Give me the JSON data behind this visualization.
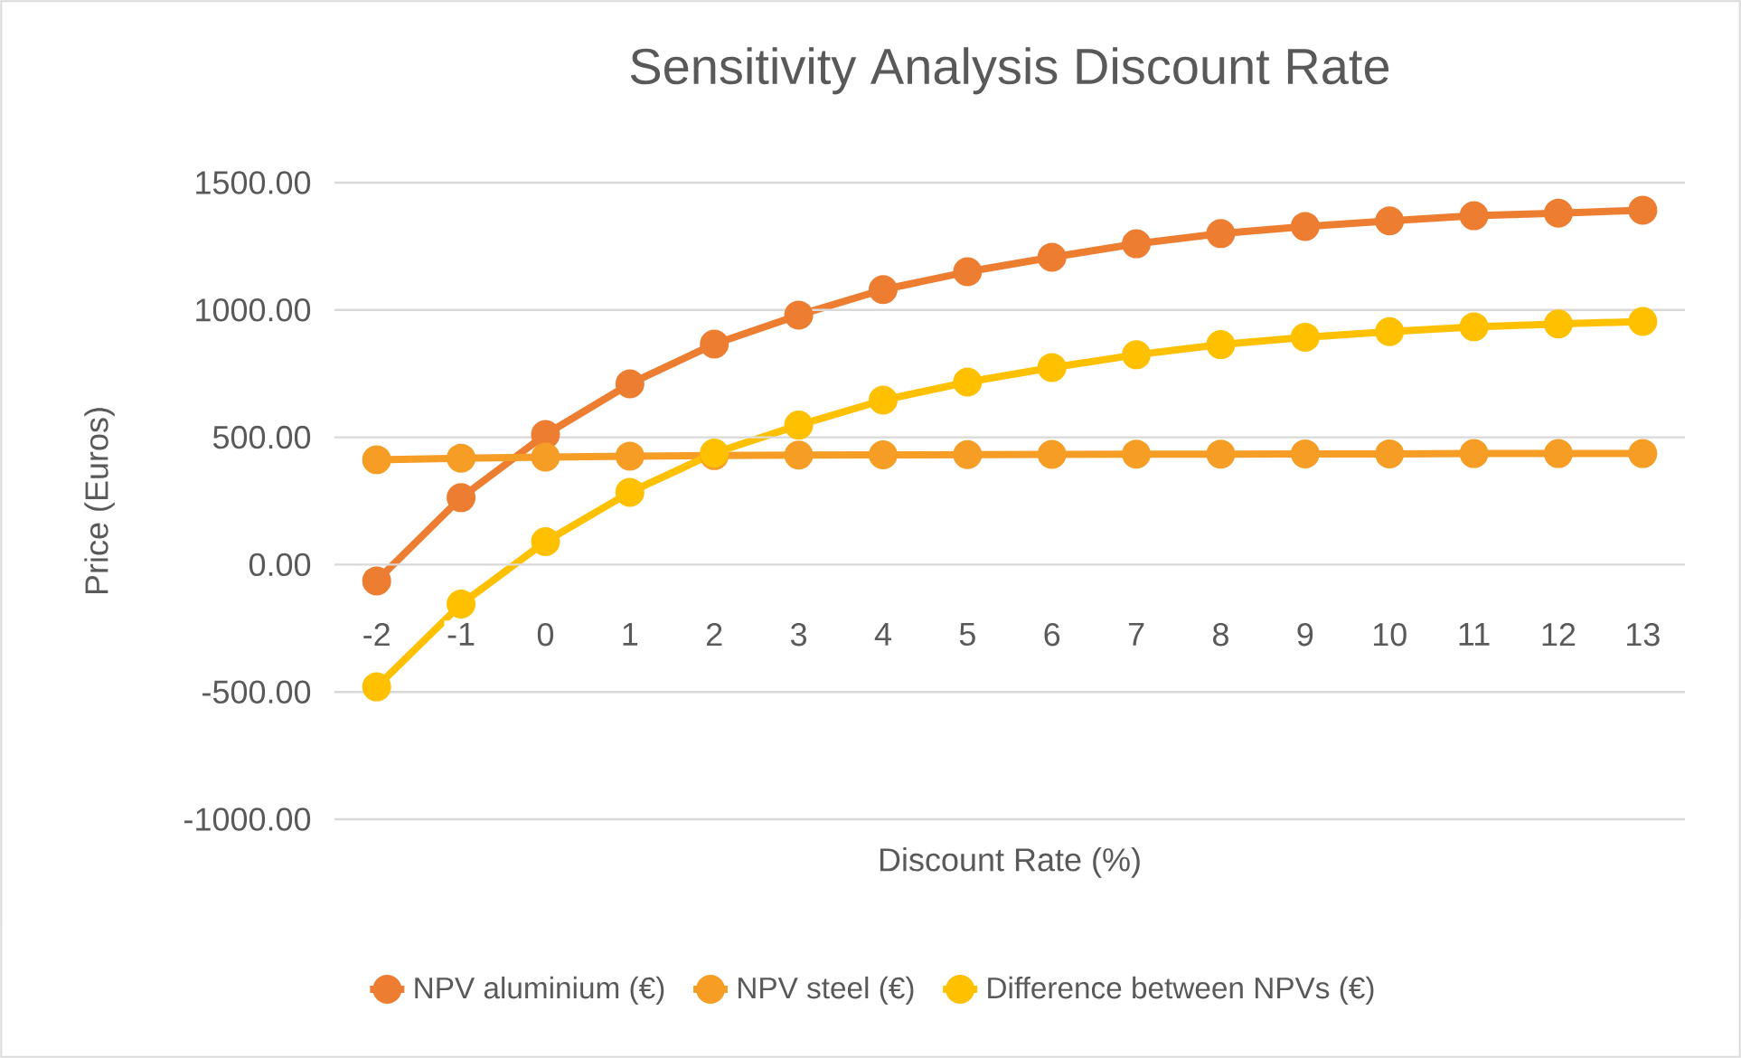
{
  "chart_data": {
    "type": "line",
    "title": "Sensitivity Analysis Discount Rate",
    "xlabel": "Discount Rate (%)",
    "ylabel": "Price (Euros)",
    "categories": [
      "-2",
      "-1",
      "0",
      "1",
      "2",
      "3",
      "4",
      "5",
      "6",
      "7",
      "8",
      "9",
      "10",
      "11",
      "12",
      "13"
    ],
    "series": [
      {
        "name": "NPV aluminium (€)",
        "color": "#ed7d31",
        "values": [
          -64,
          263,
          511,
          710,
          866,
          980,
          1080,
          1150,
          1207,
          1260,
          1300,
          1328,
          1350,
          1370,
          1380,
          1392
        ]
      },
      {
        "name": "NPV steel (€)",
        "color": "#f59d25",
        "values": [
          412,
          418,
          422,
          426,
          428,
          430,
          431,
          432,
          433,
          434,
          434,
          435,
          435,
          436,
          436,
          436
        ]
      },
      {
        "name": "Difference between NPVs (€)",
        "color": "#ffc000",
        "values": [
          -480,
          -155,
          90,
          284,
          438,
          548,
          646,
          717,
          774,
          824,
          864,
          893,
          915,
          934,
          945,
          955
        ]
      }
    ],
    "ylim": [
      -1000,
      1500
    ],
    "yticks": [
      {
        "value": -1000,
        "label": "-1000.00"
      },
      {
        "value": -500,
        "label": "-500.00"
      },
      {
        "value": 0,
        "label": "0.00"
      },
      {
        "value": 500,
        "label": "500.00"
      },
      {
        "value": 1000,
        "label": "1000.00"
      },
      {
        "value": 1500,
        "label": "1500.00"
      }
    ],
    "grid": "y",
    "legend": "bottom",
    "marker": "circle",
    "line_style": "solid"
  }
}
